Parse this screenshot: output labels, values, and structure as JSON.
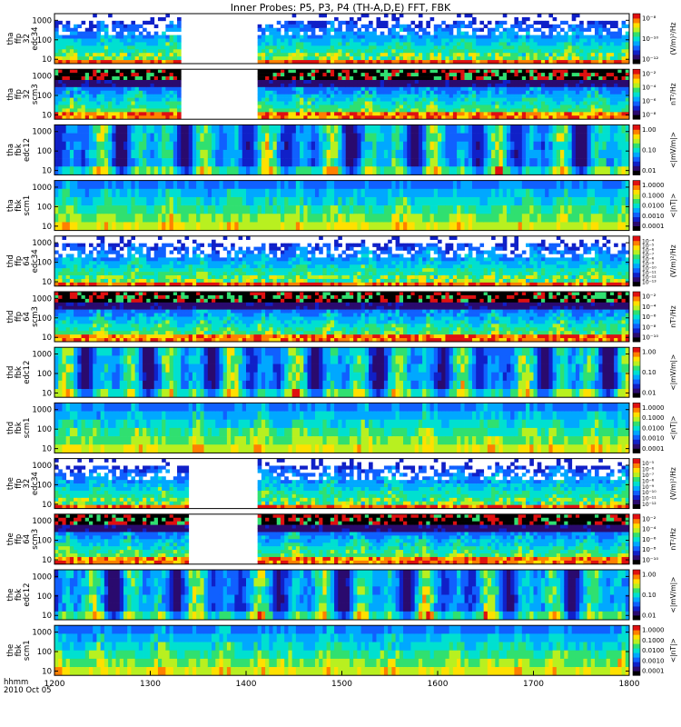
{
  "chart_data": {
    "type": "heatmap",
    "title": "Inner Probes: P5, P3, P4 (TH-A,D,E) FFT, FBK",
    "x": {
      "label_lines": [
        "hhmm",
        "2010 Oct 05"
      ],
      "range": [
        1200,
        1800
      ],
      "ticks": [
        1200,
        1300,
        1400,
        1500,
        1600,
        1700,
        1800
      ]
    },
    "colors": {
      "background": "#ffffff",
      "colormap": [
        "#000000",
        "#2a0a6e",
        "#1020c8",
        "#1060ff",
        "#00a8ff",
        "#00e0d0",
        "#30e070",
        "#b8f020",
        "#ffe000",
        "#ff8000",
        "#e01010"
      ]
    },
    "panels": [
      {
        "label": [
          "tha",
          "ffp",
          "32",
          "edc34"
        ],
        "kind": "ffp_e",
        "gap": [
          1332,
          1410
        ],
        "y_ticks": [
          "1000",
          "100",
          "10"
        ],
        "y_ticks_value": [
          1000,
          100,
          10
        ],
        "cbar_label": "(V/m)²/Hz",
        "cbar_ticks": [
          "10⁻⁸",
          "10⁻¹⁰",
          "10⁻¹²"
        ]
      },
      {
        "label": [
          "tha",
          "ffp",
          "32",
          "scm3"
        ],
        "kind": "ffp_b",
        "gap": [
          1332,
          1410
        ],
        "y_ticks": [
          "1000",
          "100",
          "10"
        ],
        "y_ticks_value": [
          1000,
          100,
          10
        ],
        "cbar_label": "nT²/Hz",
        "cbar_ticks": [
          "10⁻²",
          "10⁻⁴",
          "10⁻⁶",
          "10⁻⁸"
        ]
      },
      {
        "label": [
          "tha",
          "fbk",
          "edc12"
        ],
        "kind": "fbk_e",
        "gap": null,
        "y_ticks": [
          "1000",
          "100",
          "10"
        ],
        "y_ticks_value": [
          1000,
          100,
          10
        ],
        "cbar_label": "<|mV/m|>",
        "cbar_ticks": [
          "1.00",
          "0.10",
          "0.01"
        ]
      },
      {
        "label": [
          "tha",
          "fbk",
          "scm1"
        ],
        "kind": "fbk_b",
        "gap": null,
        "y_ticks": [
          "1000",
          "100",
          "10"
        ],
        "y_ticks_value": [
          1000,
          100,
          10
        ],
        "cbar_label": "<|nT|>",
        "cbar_ticks": [
          "1.0000",
          "0.1000",
          "0.0100",
          "0.0010",
          "0.0001"
        ]
      },
      {
        "label": [
          "thd",
          "ffp",
          "64",
          "edc34"
        ],
        "kind": "ffp_e",
        "gap": null,
        "y_ticks": [
          "1000",
          "100",
          "10"
        ],
        "y_ticks_value": [
          1000,
          100,
          10
        ],
        "cbar_label": "(V/m)²/Hz",
        "cbar_ticks": [
          "10⁻⁴",
          "10⁻⁵",
          "10⁻⁶",
          "10⁻⁷",
          "10⁻⁸",
          "10⁻⁹",
          "10⁻¹⁰",
          "10⁻¹¹",
          "10⁻¹²",
          "10⁻¹³"
        ]
      },
      {
        "label": [
          "thd",
          "ffp",
          "64",
          "scm3"
        ],
        "kind": "ffp_b",
        "gap": null,
        "y_ticks": [
          "1000",
          "100",
          "10"
        ],
        "y_ticks_value": [
          1000,
          100,
          10
        ],
        "cbar_label": "nT²/Hz",
        "cbar_ticks": [
          "10⁻²",
          "10⁻⁴",
          "10⁻⁶",
          "10⁻⁸",
          "10⁻¹⁰"
        ]
      },
      {
        "label": [
          "thd",
          "fbk",
          "edc12"
        ],
        "kind": "fbk_e",
        "gap": null,
        "y_ticks": [
          "1000",
          "100",
          "10"
        ],
        "y_ticks_value": [
          1000,
          100,
          10
        ],
        "cbar_label": "<|mV/m|>",
        "cbar_ticks": [
          "1.00",
          "0.10",
          "0.01"
        ]
      },
      {
        "label": [
          "thd",
          "fbk",
          "scm1"
        ],
        "kind": "fbk_b",
        "gap": null,
        "y_ticks": [
          "1000",
          "100",
          "10"
        ],
        "y_ticks_value": [
          1000,
          100,
          10
        ],
        "cbar_label": "<|nT|>",
        "cbar_ticks": [
          "1.0000",
          "0.1000",
          "0.0100",
          "0.0010",
          "0.0001"
        ]
      },
      {
        "label": [
          "the",
          "ffp",
          "32",
          "edc34"
        ],
        "kind": "ffp_e",
        "gap": [
          1340,
          1410
        ],
        "y_ticks": [
          "1000",
          "100",
          "10"
        ],
        "y_ticks_value": [
          1000,
          100,
          10
        ],
        "cbar_label": "(V/m)²/Hz",
        "cbar_ticks": [
          "10⁻⁵",
          "10⁻⁶",
          "10⁻⁷",
          "10⁻⁸",
          "10⁻⁹",
          "10⁻¹⁰",
          "10⁻¹¹",
          "10⁻¹²"
        ]
      },
      {
        "label": [
          "the",
          "ffp",
          "64",
          "scm3"
        ],
        "kind": "ffp_b",
        "gap": [
          1340,
          1410
        ],
        "y_ticks": [
          "1000",
          "100",
          "10"
        ],
        "y_ticks_value": [
          1000,
          100,
          10
        ],
        "cbar_label": "nT²/Hz",
        "cbar_ticks": [
          "10⁻²",
          "10⁻⁴",
          "10⁻⁶",
          "10⁻⁸",
          "10⁻¹⁰"
        ]
      },
      {
        "label": [
          "the",
          "fbk",
          "edc12"
        ],
        "kind": "fbk_e",
        "gap": null,
        "y_ticks": [
          "1000",
          "100",
          "10"
        ],
        "y_ticks_value": [
          1000,
          100,
          10
        ],
        "cbar_label": "<|mV/m|>",
        "cbar_ticks": [
          "1.00",
          "0.10",
          "0.01"
        ]
      },
      {
        "label": [
          "the",
          "fbk",
          "scm1"
        ],
        "kind": "fbk_b",
        "gap": null,
        "y_ticks": [
          "1000",
          "100",
          "10"
        ],
        "y_ticks_value": [
          1000,
          100,
          10
        ],
        "cbar_label": "<|nT|>",
        "cbar_ticks": [
          "1.0000",
          "0.1000",
          "0.0100",
          "0.0010",
          "0.0001"
        ]
      }
    ]
  }
}
